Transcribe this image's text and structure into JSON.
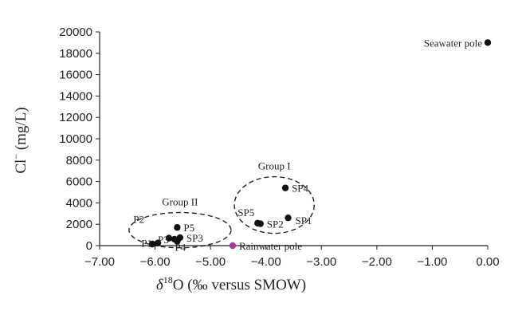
{
  "chart_data": {
    "type": "scatter",
    "title": "",
    "xlabel": {
      "prefix": "δ",
      "sup": "18",
      "rest": "O (‰ versus SMOW)"
    },
    "ylabel": {
      "main": "Cl",
      "sup": "−",
      "rest": "  (mg/L)"
    },
    "xlim": [
      -7.0,
      0.0
    ],
    "ylim": [
      0,
      20000
    ],
    "xticks": [
      -7.0,
      -6.0,
      -5.0,
      -4.0,
      -3.0,
      -2.0,
      -1.0,
      0.0
    ],
    "xtick_labels": [
      "−7.00",
      "−6.00",
      "−5.00",
      "−4.00",
      "−3.00",
      "−2.00",
      "−1.00",
      "0.00"
    ],
    "yticks": [
      0,
      2000,
      4000,
      6000,
      8000,
      10000,
      12000,
      14000,
      16000,
      18000,
      20000
    ],
    "ytick_labels": [
      "0",
      "2000",
      "4000",
      "6000",
      "8000",
      "10000",
      "12000",
      "14000",
      "16000",
      "18000",
      "20000"
    ],
    "grid": false,
    "colors": {
      "points": "#111111",
      "rainwater": "#a23a9c",
      "axis": "#222222"
    },
    "points": [
      {
        "label": "SP4",
        "x": -3.65,
        "y": 5400,
        "label_pos": "right"
      },
      {
        "label": "SP1",
        "x": -3.6,
        "y": 2600,
        "label_pos": "right-below"
      },
      {
        "label": "SP2",
        "x": -4.1,
        "y": 2050,
        "label_pos": "right"
      },
      {
        "label": "SP5",
        "x": -4.15,
        "y": 2100,
        "label_pos": "left-above"
      },
      {
        "label": "P5",
        "x": -5.6,
        "y": 1700,
        "label_pos": "right"
      },
      {
        "label": "P2",
        "x": -5.75,
        "y": 700,
        "label_pos": "left-above-far"
      },
      {
        "label": "P3",
        "x": -5.65,
        "y": 600,
        "label_pos": "left"
      },
      {
        "label": "P4",
        "x": -5.6,
        "y": 400,
        "label_pos": "below-right"
      },
      {
        "label": "SP3",
        "x": -5.55,
        "y": 750,
        "label_pos": "right"
      },
      {
        "label": "P1",
        "x": -5.95,
        "y": 250,
        "label_pos": "left"
      },
      {
        "label": "",
        "x": -6.05,
        "y": 150,
        "label_pos": "none"
      },
      {
        "label": "Seawater pole",
        "x": 0.0,
        "y": 19000,
        "label_pos": "left"
      },
      {
        "label": "Rainwater pole",
        "x": -4.6,
        "y": 0,
        "label_pos": "right",
        "color": "#a23a9c"
      }
    ],
    "groups": [
      {
        "label": "Group I",
        "cx": -3.85,
        "cy": 3800,
        "rx": 0.72,
        "ry": 2650
      },
      {
        "label": "Group II",
        "cx": -5.55,
        "cy": 1450,
        "rx": 0.92,
        "ry": 1650
      }
    ]
  }
}
